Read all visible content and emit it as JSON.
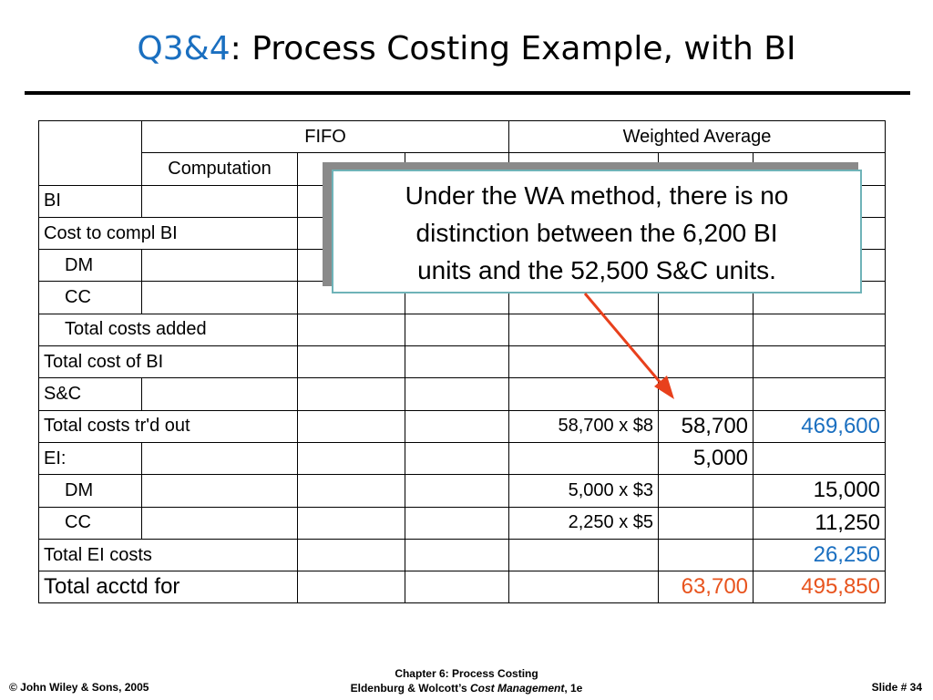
{
  "title": {
    "accent": "Q3&4",
    "rest": ": Process Costing Example, with BI"
  },
  "table": {
    "group_headers": {
      "fifo": "FIFO",
      "wa": "Weighted Average"
    },
    "sub_headers": {
      "computation": "Computation"
    },
    "rows": {
      "bi": "BI",
      "cost_to_compl": "Cost to compl BI",
      "dm": "DM",
      "cc": "CC",
      "total_added": "Total costs added",
      "total_cost_bi": "Total cost of BI",
      "sc": "S&C",
      "trd_out": "Total costs tr'd out",
      "ei": "EI:",
      "ei_dm": "DM",
      "ei_cc": "CC",
      "total_ei": "Total EI costs",
      "total_acctd": "Total acctd for"
    },
    "wa_values": {
      "trd_out_comp": "58,700 x $8",
      "trd_out_units": "58,700",
      "trd_out_costs": "469,600",
      "ei_units": "5,000",
      "ei_dm_comp": "5,000 x $3",
      "ei_dm_costs": "15,000",
      "ei_cc_comp": "2,250 x $5",
      "ei_cc_costs": "11,250",
      "total_ei_costs": "26,250",
      "total_acctd_units": "63,700",
      "total_acctd_costs": "495,850"
    }
  },
  "callout": {
    "line1": "Under the WA method, there is no",
    "line2": "distinction between the 6,200 BI",
    "line3": "units and the 52,500 S&C units."
  },
  "footer": {
    "left": "© John Wiley & Sons, 2005",
    "center_line1": "Chapter 6: Process Costing",
    "center_line2_prefix": "Eldenburg & Wolcott’s ",
    "center_line2_italic": "Cost Management",
    "center_line2_suffix": ", 1e",
    "right": "Slide #  34"
  },
  "colors": {
    "accent_blue": "#1a6fc0",
    "highlight_red": "#e8541e",
    "arrow": "#e8401c"
  }
}
